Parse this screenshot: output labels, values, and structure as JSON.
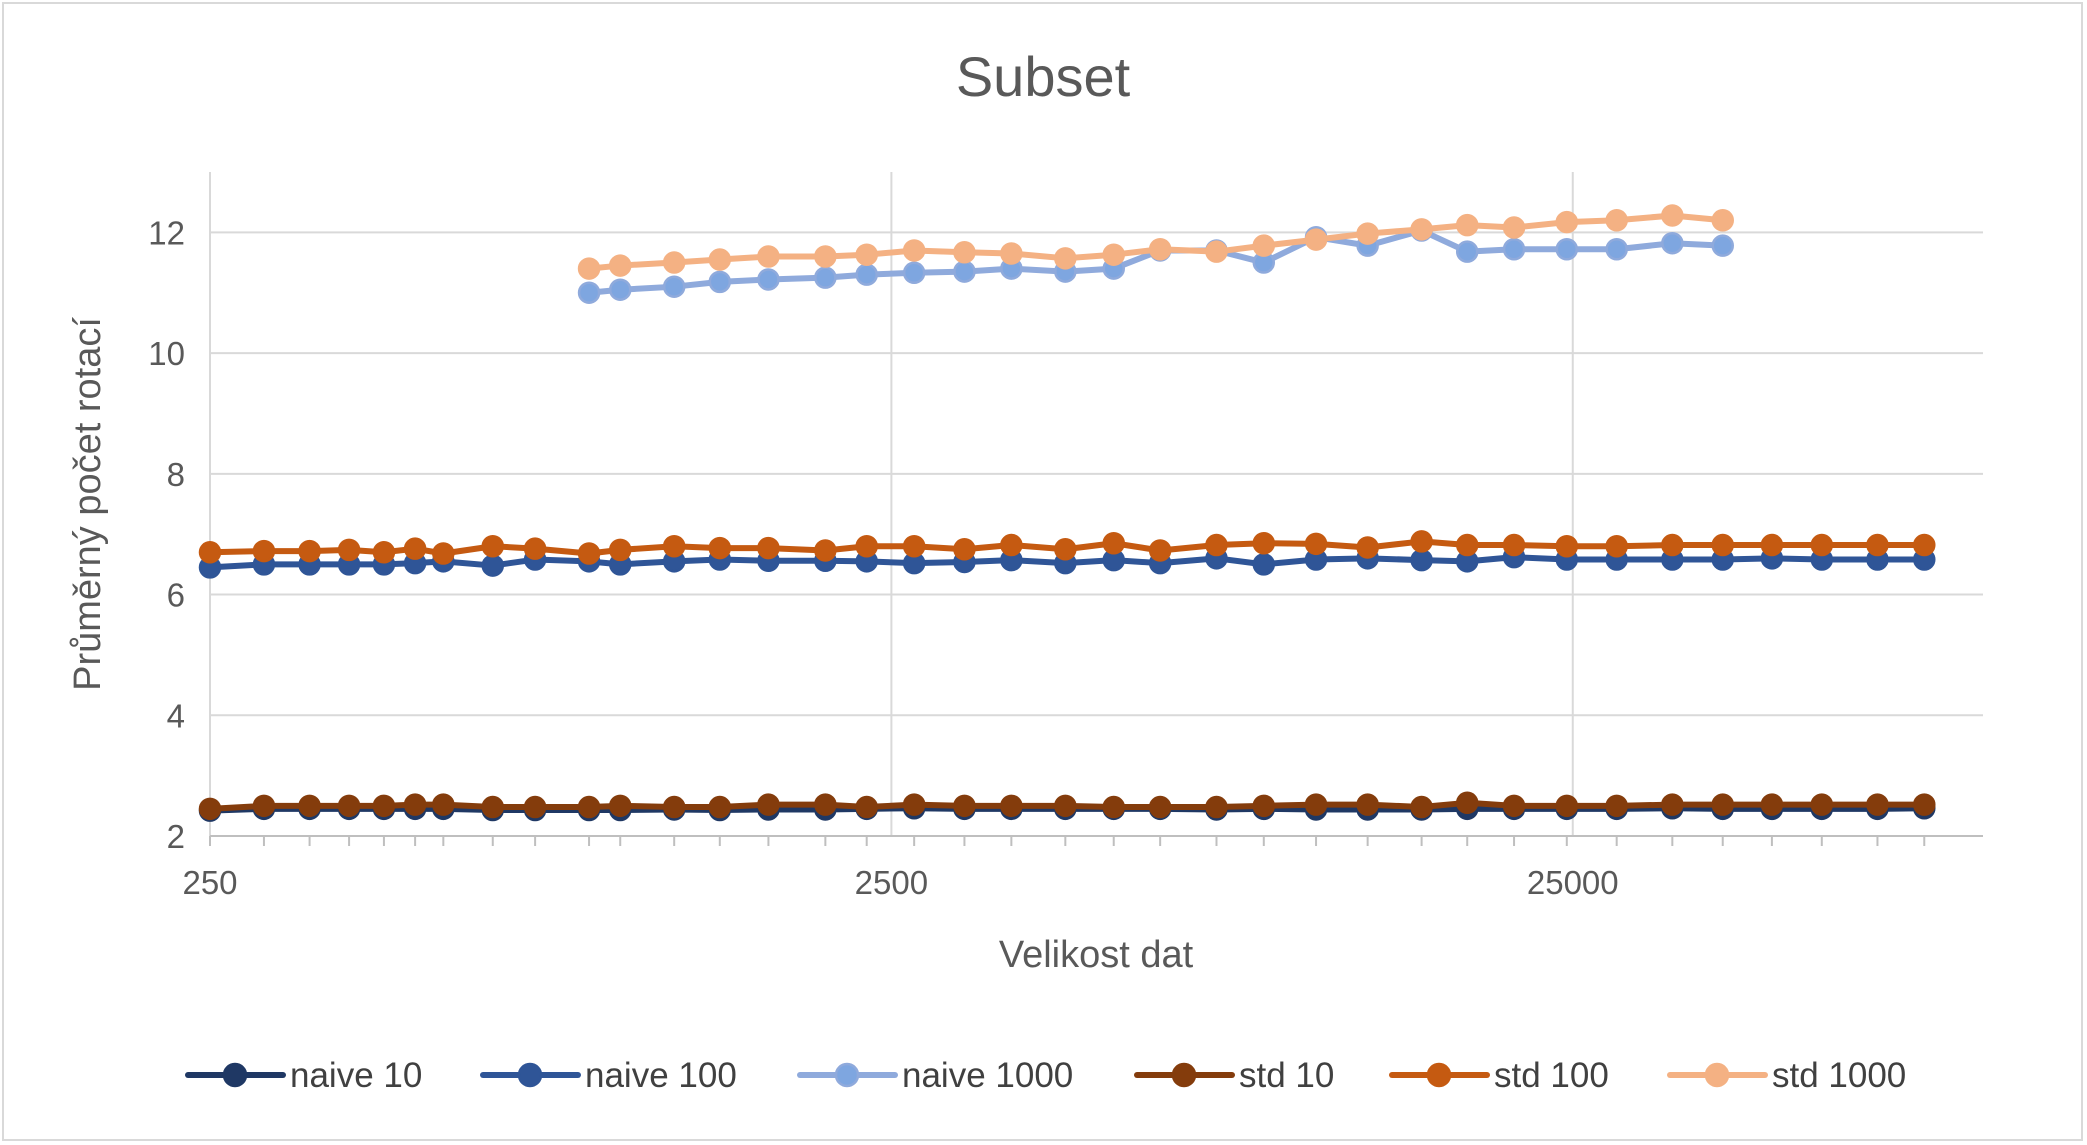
{
  "chart_data": {
    "type": "line",
    "title": "Subset",
    "xlabel": "Velikost dat",
    "ylabel": "Průměrný počet rotací",
    "x_scale": "log",
    "x_ticks": [
      "250",
      "2500",
      "25000"
    ],
    "y_ticks": [
      "2",
      "4",
      "6",
      "8",
      "10",
      "12"
    ],
    "xlim": [
      250,
      100000
    ],
    "ylim": [
      2,
      13
    ],
    "grid": true,
    "legend_position": "bottom",
    "x": [
      250,
      300,
      350,
      400,
      450,
      500,
      550,
      650,
      750,
      900,
      1000,
      1200,
      1400,
      1650,
      2000,
      2300,
      2700,
      3200,
      3750,
      4500,
      5300,
      6200,
      7500,
      8800,
      10500,
      12500,
      15000,
      17500,
      20500,
      24500,
      29000,
      35000,
      41500,
      49000,
      58000,
      70000,
      82000
    ],
    "series": [
      {
        "name": "naive 10",
        "color": "#1f3864",
        "marker_fill": "#1f3864",
        "values": [
          2.42,
          2.45,
          2.45,
          2.45,
          2.45,
          2.45,
          2.45,
          2.43,
          2.43,
          2.43,
          2.43,
          2.44,
          2.43,
          2.44,
          2.44,
          2.45,
          2.46,
          2.45,
          2.45,
          2.45,
          2.45,
          2.45,
          2.44,
          2.45,
          2.44,
          2.44,
          2.44,
          2.45,
          2.45,
          2.45,
          2.45,
          2.46,
          2.45,
          2.45,
          2.45,
          2.45,
          2.46
        ]
      },
      {
        "name": "naive 100",
        "color": "#2f5597",
        "marker_fill": "#2f5597",
        "values": [
          6.45,
          6.5,
          6.5,
          6.5,
          6.5,
          6.52,
          6.55,
          6.48,
          6.58,
          6.55,
          6.5,
          6.55,
          6.58,
          6.56,
          6.56,
          6.55,
          6.52,
          6.54,
          6.57,
          6.52,
          6.57,
          6.52,
          6.6,
          6.5,
          6.58,
          6.6,
          6.57,
          6.55,
          6.62,
          6.58,
          6.58,
          6.58,
          6.58,
          6.6,
          6.58,
          6.58,
          6.58
        ]
      },
      {
        "name": "naive 1000",
        "color": "#8faadc",
        "marker_fill": "#7ea6e0",
        "values": [
          null,
          null,
          null,
          null,
          null,
          null,
          null,
          null,
          null,
          11.0,
          11.05,
          11.1,
          11.18,
          11.22,
          11.25,
          11.3,
          11.33,
          11.35,
          11.4,
          11.35,
          11.4,
          11.7,
          11.7,
          11.5,
          11.92,
          11.78,
          12.03,
          11.68,
          11.72,
          11.72,
          11.72,
          11.82,
          11.78,
          null,
          null,
          null,
          null
        ]
      },
      {
        "name": "std 10",
        "color": "#843c0c",
        "marker_fill": "#843c0c",
        "values": [
          2.45,
          2.5,
          2.5,
          2.5,
          2.5,
          2.52,
          2.52,
          2.48,
          2.48,
          2.48,
          2.5,
          2.48,
          2.48,
          2.52,
          2.52,
          2.48,
          2.52,
          2.5,
          2.5,
          2.5,
          2.48,
          2.48,
          2.48,
          2.5,
          2.52,
          2.52,
          2.48,
          2.55,
          2.5,
          2.5,
          2.5,
          2.52,
          2.52,
          2.52,
          2.52,
          2.52,
          2.52
        ]
      },
      {
        "name": "std 100",
        "color": "#c55a11",
        "marker_fill": "#c55a11",
        "values": [
          6.7,
          6.72,
          6.72,
          6.74,
          6.7,
          6.76,
          6.68,
          6.8,
          6.76,
          6.68,
          6.74,
          6.8,
          6.77,
          6.77,
          6.73,
          6.8,
          6.8,
          6.75,
          6.82,
          6.75,
          6.85,
          6.73,
          6.82,
          6.85,
          6.84,
          6.78,
          6.88,
          6.82,
          6.82,
          6.8,
          6.8,
          6.82,
          6.82,
          6.82,
          6.82,
          6.82,
          6.82
        ]
      },
      {
        "name": "std 1000",
        "color": "#f4b183",
        "marker_fill": "#f4b183",
        "values": [
          null,
          null,
          null,
          null,
          null,
          null,
          null,
          null,
          null,
          11.4,
          11.45,
          11.5,
          11.55,
          11.6,
          11.6,
          11.63,
          11.7,
          11.67,
          11.65,
          11.57,
          11.63,
          11.72,
          11.68,
          11.78,
          11.88,
          11.98,
          12.05,
          12.12,
          12.08,
          12.17,
          12.2,
          12.28,
          12.2,
          null,
          null,
          null,
          null
        ]
      }
    ]
  }
}
